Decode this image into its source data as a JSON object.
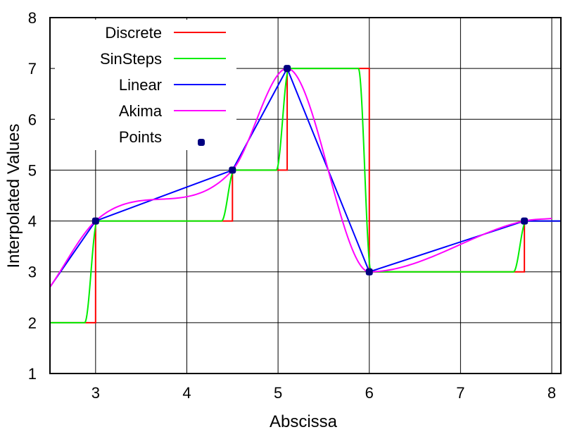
{
  "chart_data": {
    "type": "line",
    "xlabel": "Abscissa",
    "ylabel": "Interpolated Values",
    "xlim": [
      2.5,
      8.1
    ],
    "ylim": [
      1,
      8
    ],
    "xticks": [
      "3",
      "4",
      "5",
      "6",
      "7",
      "8"
    ],
    "yticks": [
      "1",
      "2",
      "3",
      "4",
      "5",
      "6",
      "7",
      "8"
    ],
    "grid": true,
    "legend_position": "top-left",
    "points": {
      "name": "Points",
      "color": "#000080",
      "x": [
        3.0,
        4.5,
        5.1,
        6.0,
        7.7
      ],
      "y": [
        4,
        5,
        7,
        3,
        4
      ]
    },
    "series": [
      {
        "name": "Discrete",
        "color": "#ff0000",
        "style": "discrete"
      },
      {
        "name": "SinSteps",
        "color": "#00ee00",
        "style": "sinsteps"
      },
      {
        "name": "Linear",
        "color": "#0000ff",
        "style": "linear"
      },
      {
        "name": "Akima",
        "color": "#ff00ff",
        "style": "akima"
      }
    ],
    "extent": {
      "x_start": 2.5,
      "y_start_linear": 2.7,
      "y_start_step": 2.0,
      "x_end": 8.1,
      "y_end": 4.0,
      "akima_end_y": 4.05
    }
  }
}
